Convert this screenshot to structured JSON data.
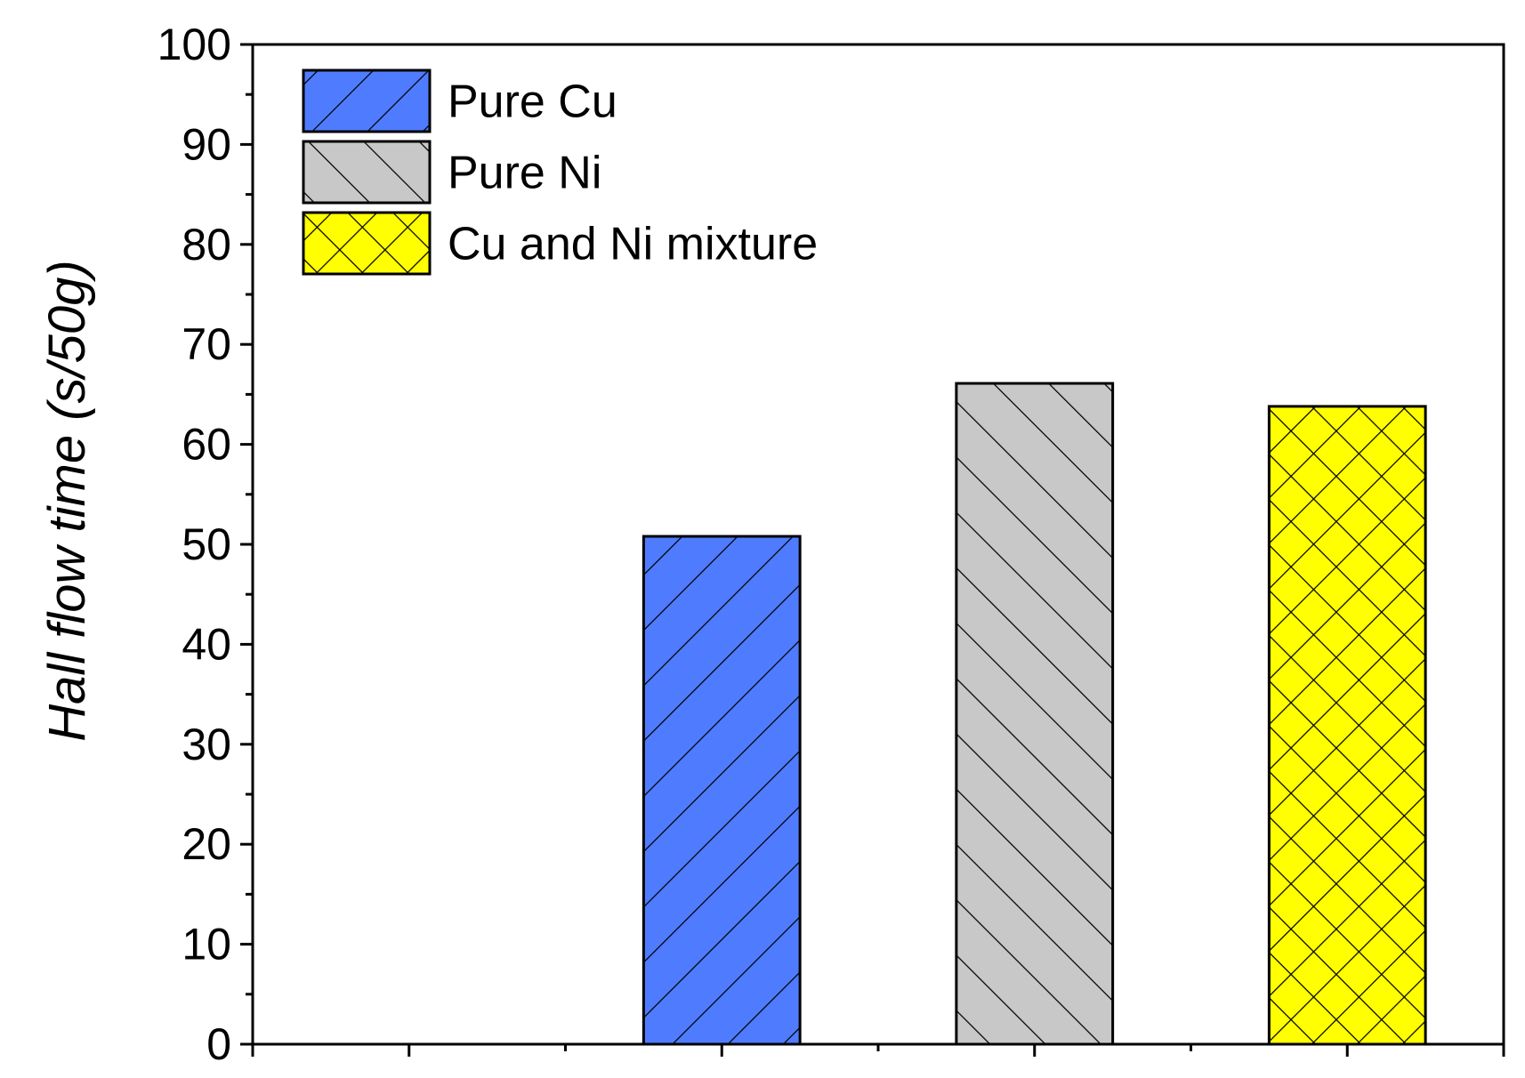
{
  "chart_data": {
    "type": "bar",
    "title": "",
    "xlabel": "",
    "ylabel": "Hall flow time (s/50g)",
    "ylim": [
      0,
      100
    ],
    "y_major_step": 10,
    "y_minor_step": 5,
    "x_slots": 8,
    "bar_positions": [
      3,
      5,
      7
    ],
    "bar_width_slots": 1,
    "grid": false,
    "legend_position": "top-left",
    "series": [
      {
        "name": "Pure Cu",
        "value": 50.8,
        "color": "#4f7cff",
        "pattern": "diagonal-forward"
      },
      {
        "name": "Pure Ni",
        "value": 66.1,
        "color": "#c8c8c8",
        "pattern": "diagonal-backward"
      },
      {
        "name": "Cu and Ni mixture",
        "value": 63.8,
        "color": "#ffff00",
        "pattern": "crosshatch"
      }
    ]
  }
}
